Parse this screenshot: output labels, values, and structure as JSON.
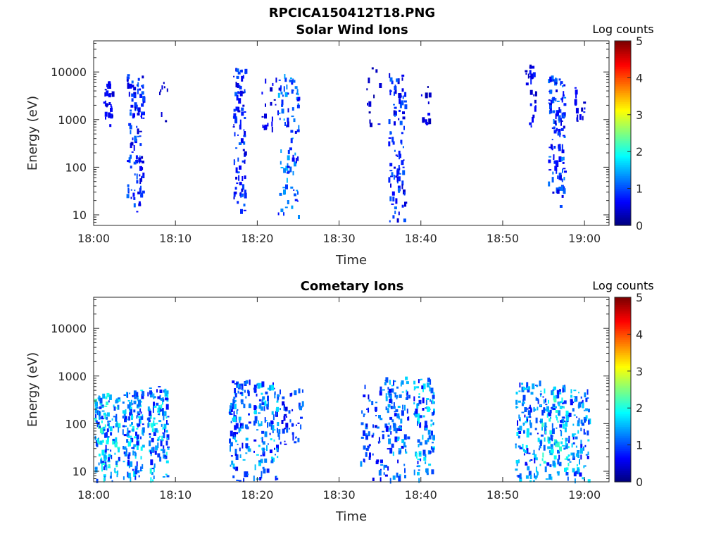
{
  "figure_title": "RPCICA150412T18.PNG",
  "chart_data": [
    {
      "type": "heatmap",
      "title": "Solar Wind Ions",
      "xlabel": "Time",
      "ylabel": "Energy (eV)",
      "x_ticks": [
        "18:00",
        "18:10",
        "18:20",
        "18:30",
        "18:40",
        "18:50",
        "19:00"
      ],
      "x_range_minutes": [
        0,
        63
      ],
      "y_ticks": [
        "10",
        "100",
        "1000",
        "10000"
      ],
      "y_scale": "log",
      "y_range": [
        6,
        45000
      ],
      "colorbar": {
        "label": "Log counts",
        "ticks": [
          "0",
          "1",
          "2",
          "3",
          "4",
          "5"
        ],
        "range": [
          0,
          5
        ]
      },
      "grid": false,
      "bursts": [
        {
          "t_min": 1.0,
          "t_max": 2.5,
          "e_min": 700,
          "e_max": 6000,
          "count": 30,
          "level": 0.6
        },
        {
          "t_min": 4.0,
          "t_max": 6.0,
          "e_min": 8,
          "e_max": 9000,
          "count": 110,
          "level": 0.9
        },
        {
          "t_min": 8.0,
          "t_max": 9.0,
          "e_min": 800,
          "e_max": 12000,
          "count": 8,
          "level": 0.4
        },
        {
          "t_min": 17.0,
          "t_max": 18.5,
          "e_min": 10,
          "e_max": 13000,
          "count": 90,
          "level": 0.9
        },
        {
          "t_min": 20.5,
          "t_max": 22.5,
          "e_min": 600,
          "e_max": 8000,
          "count": 20,
          "level": 0.5
        },
        {
          "t_min": 22.5,
          "t_max": 25.0,
          "e_min": 8,
          "e_max": 9000,
          "count": 90,
          "level": 1.2
        },
        {
          "t_min": 33.0,
          "t_max": 35.0,
          "e_min": 600,
          "e_max": 16000,
          "count": 12,
          "level": 0.4
        },
        {
          "t_min": 36.0,
          "t_max": 38.0,
          "e_min": 6,
          "e_max": 9000,
          "count": 100,
          "level": 0.9
        },
        {
          "t_min": 40.0,
          "t_max": 41.0,
          "e_min": 700,
          "e_max": 5000,
          "count": 12,
          "level": 0.5
        },
        {
          "t_min": 52.5,
          "t_max": 54.0,
          "e_min": 700,
          "e_max": 13000,
          "count": 25,
          "level": 0.6
        },
        {
          "t_min": 55.5,
          "t_max": 57.5,
          "e_min": 14,
          "e_max": 8000,
          "count": 120,
          "level": 1.0
        },
        {
          "t_min": 58.5,
          "t_max": 60.0,
          "e_min": 700,
          "e_max": 5000,
          "count": 15,
          "level": 0.6
        }
      ]
    },
    {
      "type": "heatmap",
      "title": "Cometary Ions",
      "xlabel": "Time",
      "ylabel": "Energy (eV)",
      "x_ticks": [
        "18:00",
        "18:10",
        "18:20",
        "18:30",
        "18:40",
        "18:50",
        "19:00"
      ],
      "x_range_minutes": [
        0,
        63
      ],
      "y_ticks": [
        "10",
        "100",
        "1000",
        "10000"
      ],
      "y_scale": "log",
      "y_range": [
        6,
        45000
      ],
      "colorbar": {
        "label": "Log counts",
        "ticks": [
          "0",
          "1",
          "2",
          "3",
          "4",
          "5"
        ],
        "range": [
          0,
          5
        ]
      },
      "grid": false,
      "bursts": [
        {
          "t_min": 0.0,
          "t_max": 3.0,
          "e_min": 6,
          "e_max": 400,
          "count": 150,
          "level": 1.7
        },
        {
          "t_min": 3.5,
          "t_max": 6.0,
          "e_min": 6,
          "e_max": 500,
          "count": 140,
          "level": 1.5
        },
        {
          "t_min": 6.5,
          "t_max": 9.0,
          "e_min": 6,
          "e_max": 600,
          "count": 130,
          "level": 1.6
        },
        {
          "t_min": 16.5,
          "t_max": 19.0,
          "e_min": 6,
          "e_max": 800,
          "count": 110,
          "level": 1.3
        },
        {
          "t_min": 19.5,
          "t_max": 22.5,
          "e_min": 6,
          "e_max": 700,
          "count": 120,
          "level": 1.4
        },
        {
          "t_min": 22.5,
          "t_max": 25.5,
          "e_min": 30,
          "e_max": 500,
          "count": 50,
          "level": 1.0
        },
        {
          "t_min": 32.5,
          "t_max": 35.5,
          "e_min": 6,
          "e_max": 600,
          "count": 60,
          "level": 1.1
        },
        {
          "t_min": 35.5,
          "t_max": 38.5,
          "e_min": 6,
          "e_max": 900,
          "count": 110,
          "level": 1.3
        },
        {
          "t_min": 39.0,
          "t_max": 41.5,
          "e_min": 6,
          "e_max": 900,
          "count": 100,
          "level": 1.5
        },
        {
          "t_min": 51.5,
          "t_max": 54.5,
          "e_min": 6,
          "e_max": 700,
          "count": 110,
          "level": 1.4
        },
        {
          "t_min": 54.5,
          "t_max": 58.0,
          "e_min": 6,
          "e_max": 600,
          "count": 160,
          "level": 1.7
        },
        {
          "t_min": 58.0,
          "t_max": 60.5,
          "e_min": 6,
          "e_max": 500,
          "count": 90,
          "level": 1.4
        }
      ]
    }
  ]
}
